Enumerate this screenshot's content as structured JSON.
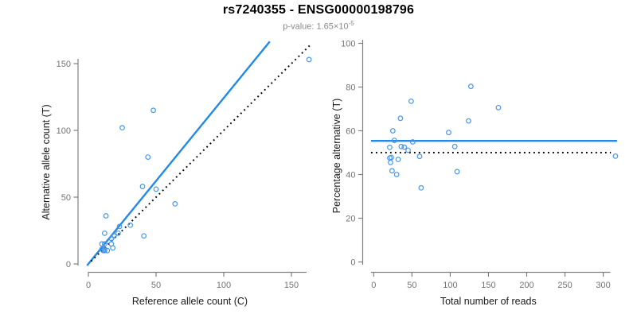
{
  "header": {
    "title": "rs7240355 - ENSG00000198796",
    "pvalue_text": "p-value: 1.65×10",
    "pvalue_exponent": "-5"
  },
  "colors": {
    "background": "#ffffff",
    "title": "#000000",
    "subtitle": "#8a8a8a",
    "axis": "#808080",
    "tick_label": "#737373",
    "axis_title": "#1a1a1a",
    "trend_line": "#2189e8",
    "dotted_line": "#000000",
    "point": "#4697e8"
  },
  "chart_data": [
    {
      "type": "scatter",
      "panel": "left",
      "xlabel": "Reference allele count (C)",
      "ylabel": "Alternative allele count (T)",
      "xlim": [
        0,
        165
      ],
      "ylim": [
        0,
        165
      ],
      "xticks": [
        0,
        50,
        100,
        150
      ],
      "yticks": [
        0,
        50,
        100,
        150
      ],
      "grid": false,
      "points": [
        [
          163,
          153
        ],
        [
          48,
          115
        ],
        [
          25,
          102
        ],
        [
          44,
          80
        ],
        [
          40,
          58
        ],
        [
          50,
          56
        ],
        [
          64,
          45
        ],
        [
          13,
          36
        ],
        [
          41,
          21
        ],
        [
          12,
          23
        ],
        [
          31,
          29
        ],
        [
          23,
          28
        ],
        [
          22,
          23
        ],
        [
          19,
          21
        ],
        [
          17,
          19
        ],
        [
          12,
          15
        ],
        [
          10,
          15
        ],
        [
          17,
          15
        ],
        [
          18,
          12
        ],
        [
          12,
          11
        ],
        [
          11,
          10
        ],
        [
          10,
          11
        ],
        [
          12,
          10
        ],
        [
          14,
          10
        ]
      ],
      "lines": [
        {
          "name": "regression",
          "style": "solid",
          "slope": 1.24,
          "from": [
            -1,
            -1.2
          ],
          "to": [
            134,
            166.5
          ]
        },
        {
          "name": "identity",
          "style": "dotted",
          "slope": 1,
          "from": [
            2,
            2
          ],
          "to": [
            163.5,
            163.5
          ]
        }
      ]
    },
    {
      "type": "scatter",
      "panel": "right",
      "xlabel": "Total number of reads",
      "ylabel": "Percentage alternative (T)",
      "xlim": [
        0,
        318
      ],
      "ylim": [
        0,
        100
      ],
      "xticks": [
        0,
        50,
        100,
        150,
        200,
        250,
        300
      ],
      "yticks": [
        0,
        20,
        40,
        60,
        80,
        100
      ],
      "grid": false,
      "points": [
        [
          316,
          48.4
        ],
        [
          163,
          70.6
        ],
        [
          127,
          80.3
        ],
        [
          124,
          64.5
        ],
        [
          98,
          59.2
        ],
        [
          106,
          52.8
        ],
        [
          109,
          41.3
        ],
        [
          49,
          73.5
        ],
        [
          62,
          33.9
        ],
        [
          35,
          65.7
        ],
        [
          60,
          48.3
        ],
        [
          51,
          54.9
        ],
        [
          45,
          51.1
        ],
        [
          40,
          52.5
        ],
        [
          36,
          52.8
        ],
        [
          27,
          55.6
        ],
        [
          25,
          60
        ],
        [
          32,
          46.9
        ],
        [
          30,
          40
        ],
        [
          23,
          47.8
        ],
        [
          21,
          47.6
        ],
        [
          21,
          52.4
        ],
        [
          22,
          45.5
        ],
        [
          24,
          41.7
        ]
      ],
      "lines": [
        {
          "name": "mean-percentage",
          "style": "solid",
          "y": 55.4,
          "from": [
            -3.5,
            55.4
          ],
          "to": [
            318,
            55.4
          ]
        },
        {
          "name": "fifty-percent",
          "style": "dotted",
          "y": 50,
          "from": [
            -3.5,
            50
          ],
          "to": [
            310,
            50
          ]
        }
      ]
    }
  ]
}
